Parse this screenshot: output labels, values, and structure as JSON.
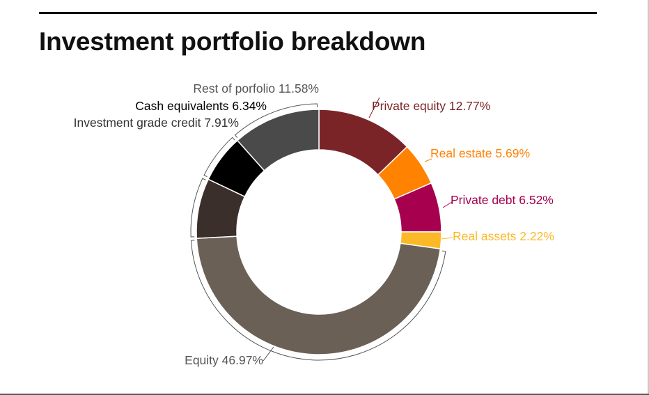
{
  "title": "Investment portfolio breakdown",
  "chart_data": {
    "type": "pie",
    "variant": "donut",
    "title": "Investment portfolio breakdown",
    "slices": [
      {
        "label": "Private equity",
        "value": 12.77,
        "display": "Private equity 12.77%",
        "color": "#7b2427",
        "label_color": "#7b2427"
      },
      {
        "label": "Real estate",
        "value": 5.69,
        "display": "Real estate 5.69%",
        "color": "#ff8200",
        "label_color": "#ff8200"
      },
      {
        "label": "Private debt",
        "value": 6.52,
        "display": "Private debt 6.52%",
        "color": "#a6004f",
        "label_color": "#a6004f"
      },
      {
        "label": "Real assets",
        "value": 2.22,
        "display": "Real assets 2.22%",
        "color": "#fbb928",
        "label_color": "#fbb928"
      },
      {
        "label": "Equity",
        "value": 46.97,
        "display": "Equity 46.97%",
        "color": "#6b6056",
        "label_color": "#555555"
      },
      {
        "label": "Investment grade credit",
        "value": 7.91,
        "display": "Investment grade credit 7.91%",
        "color": "#3b2f2b",
        "label_color": "#333333"
      },
      {
        "label": "Cash equivalents",
        "value": 6.34,
        "display": "Cash equivalents 6.34%",
        "color": "#000000",
        "label_color": "#000000"
      },
      {
        "label": "Rest of porfolio",
        "value": 11.58,
        "display": "Rest of porfolio 11.58%",
        "color": "#4a4a4a",
        "label_color": "#555555"
      }
    ]
  }
}
